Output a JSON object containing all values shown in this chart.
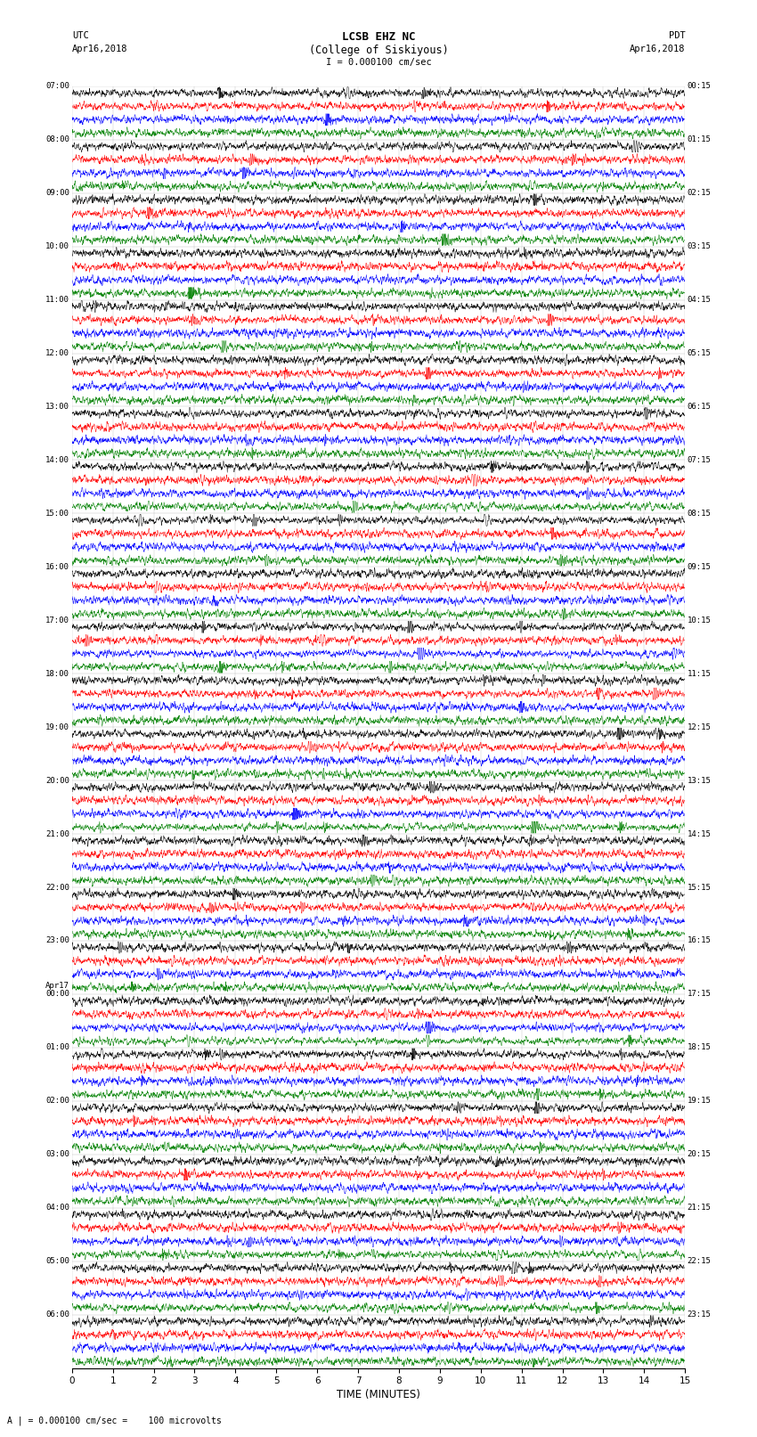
{
  "title_line1": "LCSB EHZ NC",
  "title_line2": "(College of Siskiyous)",
  "scale_text": "I = 0.000100 cm/sec",
  "left_header_line1": "UTC",
  "left_header_line2": "Apr16,2018",
  "right_header_line1": "PDT",
  "right_header_line2": "Apr16,2018",
  "bottom_label": "TIME (MINUTES)",
  "bottom_note": "A | = 0.000100 cm/sec =    100 microvolts",
  "colors": [
    "black",
    "red",
    "blue",
    "green"
  ],
  "left_times": [
    "07:00",
    "08:00",
    "09:00",
    "10:00",
    "11:00",
    "12:00",
    "13:00",
    "14:00",
    "15:00",
    "16:00",
    "17:00",
    "18:00",
    "19:00",
    "20:00",
    "21:00",
    "22:00",
    "23:00",
    "Apr17\n00:00",
    "01:00",
    "02:00",
    "03:00",
    "04:00",
    "05:00",
    "06:00"
  ],
  "right_times": [
    "00:15",
    "01:15",
    "02:15",
    "03:15",
    "04:15",
    "05:15",
    "06:15",
    "07:15",
    "08:15",
    "09:15",
    "10:15",
    "11:15",
    "12:15",
    "13:15",
    "14:15",
    "15:15",
    "16:15",
    "17:15",
    "18:15",
    "19:15",
    "20:15",
    "21:15",
    "22:15",
    "23:15"
  ],
  "n_hours": 24,
  "traces_per_hour": 4,
  "xlim": [
    0,
    15
  ],
  "xticks": [
    0,
    1,
    2,
    3,
    4,
    5,
    6,
    7,
    8,
    9,
    10,
    11,
    12,
    13,
    14,
    15
  ],
  "figsize": [
    8.5,
    16.13
  ],
  "dpi": 100,
  "bg_color": "white",
  "amp_low_base": 0.18,
  "amp_high_base": 0.55,
  "amp_transition_hour": 13,
  "amp_very_high_hour": 21,
  "amp_very_high": 0.85
}
